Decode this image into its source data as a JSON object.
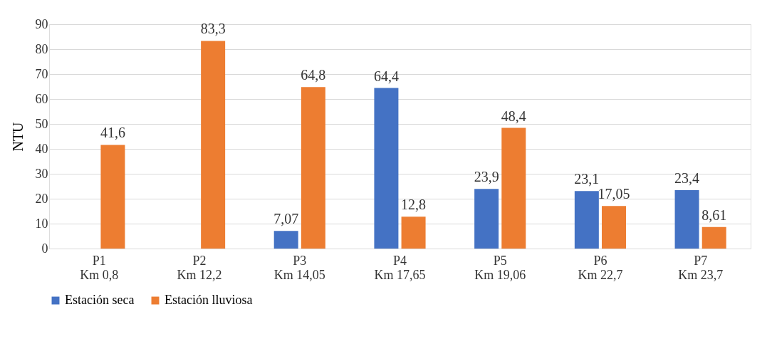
{
  "chart_data": {
    "type": "bar",
    "ylabel": "NTU",
    "categories": [
      "P1\nKm 0,8",
      "P2\nKm 12,2",
      "P3\nKm 14,05",
      "P4\nKm 17,65",
      "P5\nKm 19,06",
      "P6\nKm 22,7",
      "P7\nKm 23,7"
    ],
    "series": [
      {
        "name": "Estación seca",
        "color": "#4472c4",
        "values": [
          null,
          null,
          7.07,
          64.4,
          23.9,
          23.1,
          23.4
        ],
        "value_labels": [
          null,
          null,
          "7,07",
          "64,4",
          "23,9",
          "23,1",
          "23,4"
        ]
      },
      {
        "name": "Estación lluviosa",
        "color": "#ed7d31",
        "values": [
          41.6,
          83.3,
          64.8,
          12.8,
          48.4,
          17.05,
          8.61
        ],
        "value_labels": [
          "41,6",
          "83,3",
          "64,8",
          "12,8",
          "48,4",
          "17,05",
          "8,61"
        ]
      }
    ],
    "ylim": [
      0,
      90
    ],
    "yticks": [
      0,
      10,
      20,
      30,
      40,
      50,
      60,
      70,
      80,
      90
    ],
    "grid": "y",
    "legend": "bottom"
  }
}
